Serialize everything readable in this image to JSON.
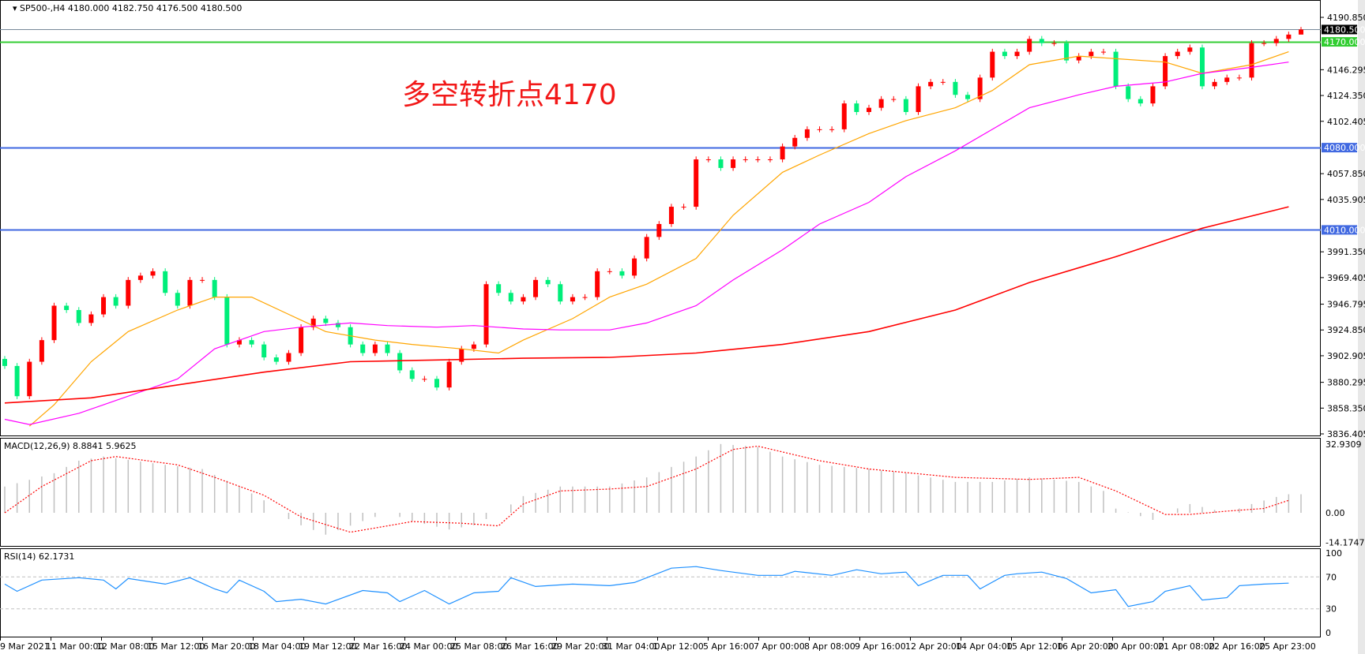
{
  "header": {
    "symbol": "SP500-,H4",
    "ohlc": "4180.000 4182.750 4176.500 4180.500"
  },
  "annotation": "多空转折点4170",
  "colors": {
    "up": "#ff0000",
    "down": "#00ee7a",
    "ma_fast": "#ffa500",
    "ma_mid": "#ff00ff",
    "ma_slow": "#ff0000",
    "support_line": "#4169e1",
    "pivot_line": "#32cd32",
    "price_line": "#778899",
    "macd_hist": "#c0c0c0",
    "macd_signal": "#ff0000",
    "rsi": "#1e90ff",
    "rsi_level": "#c0c0c0"
  },
  "chart_data": [
    {
      "type": "candlestick",
      "title": "SP500-,H4",
      "ylim": [
        3836.405,
        4190.85
      ],
      "y_ticks": [
        "4190.850",
        "4146.295",
        "4124.350",
        "4102.405",
        "4057.850",
        "4035.905",
        "3991.350",
        "3969.405",
        "3946.795",
        "3924.850",
        "3902.905",
        "3880.295",
        "3858.350",
        "3836.405"
      ],
      "x_ticks": [
        "9 Mar 2021",
        "11 Mar 00:00",
        "12 Mar 08:00",
        "15 Mar 12:00",
        "16 Mar 20:00",
        "18 Mar 04:00",
        "19 Mar 12:00",
        "22 Mar 16:00",
        "24 Mar 00:00",
        "25 Mar 08:00",
        "26 Mar 16:00",
        "29 Mar 20:00",
        "31 Mar 04:00",
        "1 Apr 12:00",
        "5 Apr 16:00",
        "7 Apr 00:00",
        "8 Apr 08:00",
        "9 Apr 16:00",
        "12 Apr 20:00",
        "14 Apr 04:00",
        "15 Apr 12:00",
        "16 Apr 20:00",
        "20 Apr 00:00",
        "21 Apr 08:00",
        "22 Apr 16:00",
        "25 Apr 23:00"
      ],
      "closes": [
        3894.2,
        3868.5,
        3897.8,
        3916.2,
        3945.5,
        3941.8,
        3930.8,
        3938.1,
        3952.8,
        3945.5,
        3967.4,
        3971.1,
        3974.8,
        3956.4,
        3945.5,
        3967.4,
        3967.4,
        3952.8,
        3912.5,
        3916.2,
        3912.5,
        3901.5,
        3897.8,
        3905.2,
        3927.2,
        3934.5,
        3930.8,
        3927.2,
        3912.5,
        3905.2,
        3912.5,
        3905.2,
        3890.5,
        3883.2,
        3883.2,
        3875.9,
        3897.8,
        3908.8,
        3912.5,
        3963.8,
        3956.4,
        3949.1,
        3952.8,
        3967.4,
        3963.8,
        3949.1,
        3952.8,
        3952.8,
        3974.8,
        3974.8,
        3971.1,
        3985.7,
        4004.0,
        4015.0,
        4029.7,
        4029.7,
        4070.0,
        4070.0,
        4062.7,
        4070.0,
        4070.0,
        4070.0,
        4070.0,
        4081.0,
        4088.3,
        4095.6,
        4095.6,
        4095.6,
        4117.6,
        4110.3,
        4113.9,
        4121.3,
        4121.3,
        4110.3,
        4132.2,
        4135.9,
        4135.9,
        4124.9,
        4121.3,
        4139.6,
        4161.6,
        4157.9,
        4161.6,
        4172.5,
        4168.9,
        4168.9,
        4154.2,
        4157.9,
        4161.6,
        4161.6,
        4132.2,
        4121.3,
        4117.6,
        4132.2,
        4157.9,
        4161.6,
        4165.2,
        4132.2,
        4135.9,
        4139.6,
        4139.6,
        4168.9,
        4168.9,
        4172.5,
        4176.2,
        4180.5
      ],
      "last": {
        "open": 4180.0,
        "high": 4182.75,
        "low": 4176.5,
        "close": 4180.5
      },
      "moving_averages": [
        {
          "color_key": "ma_fast",
          "points": [
            [
              2,
              3843
            ],
            [
              4,
              3861.2
            ],
            [
              7,
              3897.8
            ],
            [
              10,
              3923.5
            ],
            [
              14,
              3941.8
            ],
            [
              17,
              3952.8
            ],
            [
              20,
              3952.8
            ],
            [
              23,
              3938.1
            ],
            [
              26,
              3923.5
            ],
            [
              30,
              3916.2
            ],
            [
              33,
              3912.5
            ],
            [
              37,
              3908.8
            ],
            [
              40,
              3905.2
            ],
            [
              42,
              3916.2
            ],
            [
              46,
              3934.5
            ],
            [
              49,
              3952.8
            ],
            [
              52,
              3963.8
            ],
            [
              56,
              3985.7
            ],
            [
              59,
              4022.4
            ],
            [
              63,
              4059.0
            ],
            [
              66,
              4073.7
            ],
            [
              70,
              4092.0
            ],
            [
              73,
              4103.0
            ],
            [
              77,
              4113.9
            ],
            [
              80,
              4128.6
            ],
            [
              83,
              4150.6
            ],
            [
              87,
              4157.9
            ],
            [
              90,
              4155.7
            ],
            [
              94,
              4152.8
            ],
            [
              97,
              4143.2
            ],
            [
              101,
              4150.6
            ],
            [
              104,
              4161.6
            ]
          ]
        },
        {
          "color_key": "ma_mid",
          "points": [
            [
              0,
              3848.8
            ],
            [
              2,
              3844.4
            ],
            [
              6,
              3853.9
            ],
            [
              10,
              3868.5
            ],
            [
              14,
              3883.2
            ],
            [
              17,
              3908.8
            ],
            [
              21,
              3923.5
            ],
            [
              24,
              3927.2
            ],
            [
              28,
              3930.8
            ],
            [
              31,
              3928.6
            ],
            [
              35,
              3927.2
            ],
            [
              38,
              3928.6
            ],
            [
              42,
              3925.7
            ],
            [
              45,
              3924.9
            ],
            [
              49,
              3924.9
            ],
            [
              52,
              3930.8
            ],
            [
              56,
              3945.5
            ],
            [
              59,
              3967.4
            ],
            [
              63,
              3993.1
            ],
            [
              66,
              4015.0
            ],
            [
              70,
              4033.4
            ],
            [
              73,
              4055.3
            ],
            [
              77,
              4077.3
            ],
            [
              80,
              4095.6
            ],
            [
              83,
              4113.9
            ],
            [
              87,
              4124.9
            ],
            [
              90,
              4132.2
            ],
            [
              94,
              4135.9
            ],
            [
              97,
              4143.2
            ],
            [
              101,
              4148.3
            ],
            [
              104,
              4152.8
            ]
          ]
        },
        {
          "color_key": "ma_slow",
          "points": [
            [
              0,
              3862.7
            ],
            [
              7,
              3867.1
            ],
            [
              14,
              3878.1
            ],
            [
              21,
              3889.0
            ],
            [
              28,
              3897.8
            ],
            [
              35,
              3899.3
            ],
            [
              42,
              3900.8
            ],
            [
              49,
              3901.5
            ],
            [
              56,
              3905.2
            ],
            [
              63,
              3912.5
            ],
            [
              70,
              3923.5
            ],
            [
              77,
              3941.8
            ],
            [
              83,
              3965.2
            ],
            [
              90,
              3987.2
            ],
            [
              97,
              4011.4
            ],
            [
              104,
              4029.7
            ]
          ]
        }
      ],
      "horizontal_lines": [
        {
          "value": 4180.5,
          "label": "4180.500",
          "color_key": "price_line",
          "tag_bg": "#000000"
        },
        {
          "value": 4170.0,
          "label": "4170.000",
          "color_key": "pivot_line",
          "tag_bg": "#32cd32"
        },
        {
          "value": 4080.0,
          "label": "4080.000",
          "color_key": "support_line",
          "tag_bg": "#4169e1"
        },
        {
          "value": 4010.0,
          "label": "4010.000",
          "color_key": "support_line",
          "tag_bg": "#4169e1"
        }
      ]
    },
    {
      "type": "bar",
      "title": "MACD(12,26,9) 8.8841 5.9625",
      "ylim": [
        -14.1747,
        32.9309
      ],
      "y_ticks": [
        "32.9309",
        "0.00",
        "-14.1747"
      ],
      "macd_main": [
        [
          0,
          12.6
        ],
        [
          4,
          19
        ],
        [
          6,
          25
        ],
        [
          8,
          27
        ],
        [
          13,
          23
        ],
        [
          16,
          21
        ],
        [
          19,
          12.6
        ],
        [
          21,
          6
        ],
        [
          22,
          0
        ],
        [
          24,
          -6
        ],
        [
          26,
          -10.5
        ],
        [
          29,
          -4
        ],
        [
          31,
          0
        ],
        [
          33,
          -4
        ],
        [
          36,
          -8
        ],
        [
          38,
          -6
        ],
        [
          40,
          0
        ],
        [
          42,
          8
        ],
        [
          45,
          12.6
        ],
        [
          49,
          12.6
        ],
        [
          52,
          17
        ],
        [
          56,
          27
        ],
        [
          58,
          33
        ],
        [
          61,
          31.6
        ],
        [
          63,
          27
        ],
        [
          66,
          23
        ],
        [
          70,
          21
        ],
        [
          73,
          19
        ],
        [
          77,
          14.8
        ],
        [
          80,
          14.8
        ],
        [
          83,
          17
        ],
        [
          87,
          14.8
        ],
        [
          89,
          10.5
        ],
        [
          90,
          2
        ],
        [
          93,
          -3.4
        ],
        [
          94,
          0
        ],
        [
          96,
          4.2
        ],
        [
          99,
          0
        ],
        [
          101,
          4.2
        ],
        [
          103,
          7.6
        ],
        [
          104,
          8.8841
        ]
      ],
      "signal": [
        [
          0,
          0
        ],
        [
          3,
          12.6
        ],
        [
          7,
          25
        ],
        [
          9,
          27
        ],
        [
          14,
          23
        ],
        [
          17,
          17
        ],
        [
          21,
          8.4
        ],
        [
          24,
          -2
        ],
        [
          28,
          -9.3
        ],
        [
          31,
          -6.3
        ],
        [
          33,
          -4.2
        ],
        [
          37,
          -5
        ],
        [
          40,
          -6.3
        ],
        [
          42,
          4.2
        ],
        [
          45,
          10.5
        ],
        [
          49,
          11.4
        ],
        [
          52,
          12.6
        ],
        [
          56,
          21
        ],
        [
          59,
          30.4
        ],
        [
          61,
          32
        ],
        [
          66,
          25
        ],
        [
          70,
          21
        ],
        [
          77,
          17
        ],
        [
          83,
          16
        ],
        [
          87,
          17
        ],
        [
          90,
          10.5
        ],
        [
          94,
          -0.8
        ],
        [
          96,
          -0.8
        ],
        [
          99,
          0.8
        ],
        [
          102,
          2.1
        ],
        [
          104,
          5.9625
        ]
      ]
    },
    {
      "type": "line",
      "title": "RSI(14) 62.1731",
      "ylim": [
        0,
        100
      ],
      "y_ticks": [
        "100",
        "70",
        "30",
        "0"
      ],
      "levels": [
        70,
        30
      ],
      "values": [
        [
          0,
          61
        ],
        [
          1,
          52
        ],
        [
          3,
          66
        ],
        [
          6,
          69
        ],
        [
          8,
          66
        ],
        [
          9,
          55
        ],
        [
          10,
          68
        ],
        [
          13,
          61
        ],
        [
          15,
          69
        ],
        [
          17,
          55
        ],
        [
          18,
          50
        ],
        [
          19,
          66
        ],
        [
          21,
          52
        ],
        [
          22,
          39
        ],
        [
          24,
          42
        ],
        [
          26,
          36
        ],
        [
          29,
          53
        ],
        [
          31,
          50
        ],
        [
          32,
          39
        ],
        [
          34,
          53
        ],
        [
          36,
          36
        ],
        [
          38,
          50
        ],
        [
          40,
          52
        ],
        [
          41,
          69
        ],
        [
          43,
          58
        ],
        [
          46,
          61
        ],
        [
          49,
          59
        ],
        [
          51,
          63
        ],
        [
          54,
          81
        ],
        [
          56,
          83
        ],
        [
          58,
          78
        ],
        [
          61,
          72
        ],
        [
          63,
          72
        ],
        [
          64,
          77
        ],
        [
          67,
          72
        ],
        [
          69,
          79
        ],
        [
          71,
          74
        ],
        [
          73,
          76
        ],
        [
          74,
          59
        ],
        [
          76,
          72
        ],
        [
          78,
          72
        ],
        [
          79,
          55
        ],
        [
          81,
          72
        ],
        [
          82,
          74
        ],
        [
          84,
          76
        ],
        [
          86,
          68
        ],
        [
          88,
          50
        ],
        [
          90,
          54
        ],
        [
          91,
          33
        ],
        [
          93,
          39
        ],
        [
          94,
          52
        ],
        [
          96,
          59
        ],
        [
          97,
          41
        ],
        [
          99,
          44
        ],
        [
          100,
          59
        ],
        [
          102,
          61
        ],
        [
          104,
          62.1731
        ]
      ]
    }
  ]
}
